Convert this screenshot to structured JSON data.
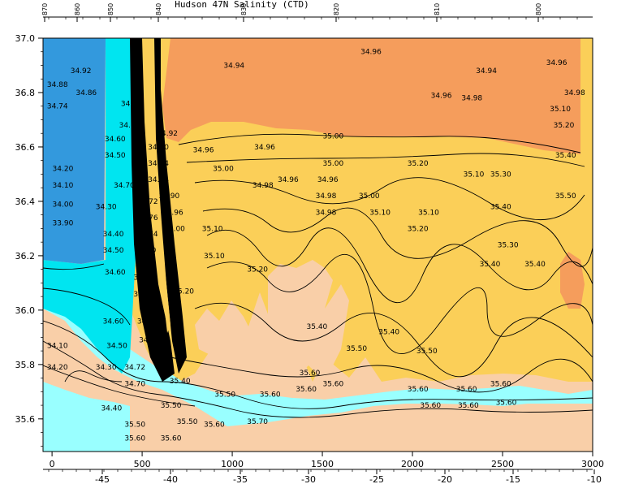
{
  "chart_data": {
    "type": "heatmap",
    "title": "Hudson 47N Salinity (CTD)",
    "ylim": [
      37.0,
      35.48
    ],
    "x_bottom": {
      "range": [
        -50,
        3000
      ],
      "ticks": [
        0,
        500,
        1000,
        1500,
        2000,
        2500,
        3000
      ]
    },
    "x_bottom2": {
      "ticks": [
        -45,
        -40,
        -35,
        -30,
        -25,
        -20,
        -15,
        -10
      ]
    },
    "x_top": {
      "ticks": [
        "870",
        "860",
        "850",
        "840",
        "830",
        "820",
        "810",
        "800"
      ]
    },
    "y_left": {
      "ticks": [
        "35.6",
        "35.8",
        "36.0",
        "36.2",
        "36.4",
        "36.6",
        "36.8",
        "37.0"
      ]
    },
    "colors": {
      "blue": "#3399dd",
      "cyan": "#00e5f0",
      "light_cyan": "#99ffff",
      "peach": "#f9cfa8",
      "light_orange": "#fcc97d",
      "yellow_orange": "#fbcf58",
      "orange": "#f59d5c"
    },
    "contour_labels": [
      {
        "text": "35.60",
        "x": 460,
        "y": 35.53
      },
      {
        "text": "35.60",
        "x": 660,
        "y": 35.53
      },
      {
        "text": "35.50",
        "x": 460,
        "y": 35.58
      },
      {
        "text": "35.50",
        "x": 750,
        "y": 35.59
      },
      {
        "text": "35.60",
        "x": 900,
        "y": 35.58
      },
      {
        "text": "35.70",
        "x": 1140,
        "y": 35.59
      },
      {
        "text": "34.40",
        "x": 330,
        "y": 35.64
      },
      {
        "text": "35.50",
        "x": 660,
        "y": 35.65
      },
      {
        "text": "35.50",
        "x": 960,
        "y": 35.69
      },
      {
        "text": "35.60",
        "x": 1210,
        "y": 35.69
      },
      {
        "text": "35.60",
        "x": 2100,
        "y": 35.65
      },
      {
        "text": "35.60",
        "x": 2310,
        "y": 35.65
      },
      {
        "text": "35.60",
        "x": 2520,
        "y": 35.66
      },
      {
        "text": "34.70",
        "x": 460,
        "y": 35.73
      },
      {
        "text": "35.40",
        "x": 710,
        "y": 35.74
      },
      {
        "text": "35.60",
        "x": 1410,
        "y": 35.71
      },
      {
        "text": "35.60",
        "x": 1560,
        "y": 35.73
      },
      {
        "text": "35.60",
        "x": 2030,
        "y": 35.71
      },
      {
        "text": "35.60",
        "x": 2300,
        "y": 35.71
      },
      {
        "text": "35.60",
        "x": 2490,
        "y": 35.73
      },
      {
        "text": "34.20",
        "x": 30,
        "y": 35.79
      },
      {
        "text": "34.30",
        "x": 300,
        "y": 35.79
      },
      {
        "text": "34.72",
        "x": 460,
        "y": 35.79
      },
      {
        "text": "35.60",
        "x": 1430,
        "y": 35.77
      },
      {
        "text": "34.10",
        "x": 30,
        "y": 35.87
      },
      {
        "text": "34.50",
        "x": 360,
        "y": 35.87
      },
      {
        "text": "34.80",
        "x": 540,
        "y": 35.89
      },
      {
        "text": "35.50",
        "x": 1690,
        "y": 35.86
      },
      {
        "text": "35.50",
        "x": 2080,
        "y": 35.85
      },
      {
        "text": "35.40",
        "x": 1870,
        "y": 35.92
      },
      {
        "text": "35.40",
        "x": 1470,
        "y": 35.94
      },
      {
        "text": "34.60",
        "x": 340,
        "y": 35.96
      },
      {
        "text": "34.78",
        "x": 530,
        "y": 35.96
      },
      {
        "text": "34.40",
        "x": 510,
        "y": 36.06
      },
      {
        "text": "35.20",
        "x": 730,
        "y": 36.07
      },
      {
        "text": "34.50",
        "x": 510,
        "y": 36.12
      },
      {
        "text": "34.60",
        "x": 350,
        "y": 36.14
      },
      {
        "text": "34.60",
        "x": 520,
        "y": 36.17
      },
      {
        "text": "35.20",
        "x": 1140,
        "y": 36.15
      },
      {
        "text": "35.40",
        "x": 2430,
        "y": 36.17
      },
      {
        "text": "35.40",
        "x": 2680,
        "y": 36.17
      },
      {
        "text": "35.10",
        "x": 900,
        "y": 36.2
      },
      {
        "text": "34.50",
        "x": 340,
        "y": 36.22
      },
      {
        "text": "34.70",
        "x": 520,
        "y": 36.22
      },
      {
        "text": "35.30",
        "x": 2530,
        "y": 36.24
      },
      {
        "text": "34.40",
        "x": 340,
        "y": 36.28
      },
      {
        "text": "34.74",
        "x": 530,
        "y": 36.28
      },
      {
        "text": "35.00",
        "x": 680,
        "y": 36.3
      },
      {
        "text": "35.10",
        "x": 890,
        "y": 36.3
      },
      {
        "text": "35.20",
        "x": 2030,
        "y": 36.3
      },
      {
        "text": "33.90",
        "x": 60,
        "y": 36.32
      },
      {
        "text": "34.76",
        "x": 530,
        "y": 36.34
      },
      {
        "text": "34.96",
        "x": 670,
        "y": 36.36
      },
      {
        "text": "34.98",
        "x": 1520,
        "y": 36.36
      },
      {
        "text": "35.10",
        "x": 1820,
        "y": 36.36
      },
      {
        "text": "35.10",
        "x": 2090,
        "y": 36.36
      },
      {
        "text": "34.30",
        "x": 300,
        "y": 36.38
      },
      {
        "text": "35.40",
        "x": 2490,
        "y": 36.38
      },
      {
        "text": "34.00",
        "x": 60,
        "y": 36.39
      },
      {
        "text": "34.72",
        "x": 530,
        "y": 36.4
      },
      {
        "text": "34.98",
        "x": 1520,
        "y": 36.42
      },
      {
        "text": "35.00",
        "x": 1760,
        "y": 36.42
      },
      {
        "text": "35.50",
        "x": 2850,
        "y": 36.42
      },
      {
        "text": "34.90",
        "x": 650,
        "y": 36.42
      },
      {
        "text": "34.10",
        "x": 60,
        "y": 36.46
      },
      {
        "text": "34.70",
        "x": 400,
        "y": 36.46
      },
      {
        "text": "34.98",
        "x": 1170,
        "y": 36.46
      },
      {
        "text": "34.96",
        "x": 1310,
        "y": 36.48
      },
      {
        "text": "34.96",
        "x": 1530,
        "y": 36.48
      },
      {
        "text": "34.84",
        "x": 590,
        "y": 36.48
      },
      {
        "text": "35.10",
        "x": 2340,
        "y": 36.5
      },
      {
        "text": "35.30",
        "x": 2490,
        "y": 36.5
      },
      {
        "text": "34.20",
        "x": 60,
        "y": 36.52
      },
      {
        "text": "34.74",
        "x": 590,
        "y": 36.54
      },
      {
        "text": "35.00",
        "x": 950,
        "y": 36.52
      },
      {
        "text": "35.00",
        "x": 1560,
        "y": 36.54
      },
      {
        "text": "35.20",
        "x": 2030,
        "y": 36.54
      },
      {
        "text": "35.40",
        "x": 2850,
        "y": 36.57
      },
      {
        "text": "34.50",
        "x": 350,
        "y": 36.57
      },
      {
        "text": "34.96",
        "x": 840,
        "y": 36.59
      },
      {
        "text": "34.96",
        "x": 1180,
        "y": 36.6
      },
      {
        "text": "34.60",
        "x": 350,
        "y": 36.63
      },
      {
        "text": "34.80",
        "x": 590,
        "y": 36.6
      },
      {
        "text": "35.00",
        "x": 1560,
        "y": 36.64
      },
      {
        "text": "34.92",
        "x": 640,
        "y": 36.65
      },
      {
        "text": "35.20",
        "x": 2840,
        "y": 36.68
      },
      {
        "text": "34.92",
        "x": 430,
        "y": 36.68
      },
      {
        "text": "34.74",
        "x": 30,
        "y": 36.75
      },
      {
        "text": "35.10",
        "x": 2820,
        "y": 36.74
      },
      {
        "text": "34.90",
        "x": 440,
        "y": 36.76
      },
      {
        "text": "34.96",
        "x": 2160,
        "y": 36.79
      },
      {
        "text": "34.98",
        "x": 2330,
        "y": 36.78
      },
      {
        "text": "34.86",
        "x": 190,
        "y": 36.8
      },
      {
        "text": "34.98",
        "x": 2900,
        "y": 36.8
      },
      {
        "text": "34.88",
        "x": 30,
        "y": 36.83
      },
      {
        "text": "34.94",
        "x": 2410,
        "y": 36.88
      },
      {
        "text": "34.92",
        "x": 160,
        "y": 36.88
      },
      {
        "text": "34.94",
        "x": 1010,
        "y": 36.9
      },
      {
        "text": "34.96",
        "x": 2800,
        "y": 36.91
      },
      {
        "text": "34.96",
        "x": 1770,
        "y": 36.95
      }
    ]
  }
}
